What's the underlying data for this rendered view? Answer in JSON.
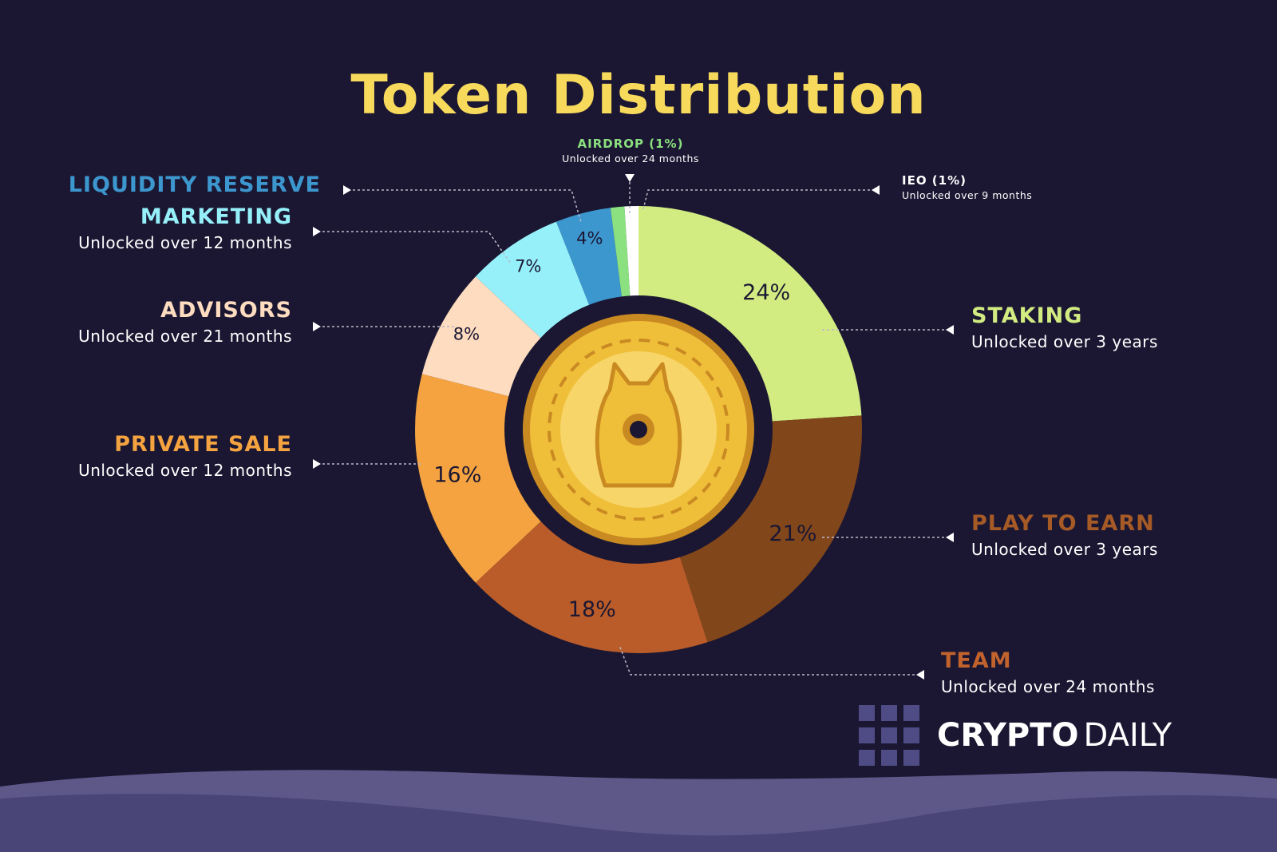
{
  "colors": {
    "background": "#1b1732",
    "title": "#f7d95c",
    "leader": "#b9b7c8",
    "hill_front": "#4a4577",
    "hill_back": "#5d5888",
    "coin_outer": "#c98a22",
    "coin_mid": "#f0bf3a",
    "coin_inner": "#f7d568",
    "hole": "#1b1732",
    "brand_squares": "#4f4c85"
  },
  "chart_data": {
    "type": "pie",
    "title": "Token Distribution",
    "start_angle_deg": 0,
    "slices": [
      {
        "key": "staking",
        "label": "STAKING",
        "value": 24,
        "pct_label": "24%",
        "color": "#d2ec82",
        "text_color": "#1b1732"
      },
      {
        "key": "play_to_earn",
        "label": "PLAY TO EARN",
        "value": 21,
        "pct_label": "21%",
        "color": "#82461b",
        "text_color": "#1b1732"
      },
      {
        "key": "team",
        "label": "TEAM",
        "value": 18,
        "pct_label": "18%",
        "color": "#ba5c29",
        "text_color": "#1b1732"
      },
      {
        "key": "private_sale",
        "label": "PRIVATE SALE",
        "value": 16,
        "pct_label": "16%",
        "color": "#f4a340",
        "text_color": "#1b1732"
      },
      {
        "key": "advisors",
        "label": "ADVISORS",
        "value": 8,
        "pct_label": "8%",
        "color": "#fddcc0",
        "text_color": "#1b1732"
      },
      {
        "key": "marketing",
        "label": "MARKETING",
        "value": 7,
        "pct_label": "7%",
        "color": "#96f0fa",
        "text_color": "#1b1732"
      },
      {
        "key": "liquidity_reserve",
        "label": "LIQUIDITY RESERVE",
        "value": 4,
        "pct_label": "4%",
        "color": "#3d97cf",
        "text_color": "#1b1732"
      },
      {
        "key": "airdrop",
        "label": "AIRDROP (1%)",
        "value": 1,
        "pct_label": "",
        "color": "#8be07f",
        "text_color": "#1b1732"
      },
      {
        "key": "ieo",
        "label": "IEO (1%)",
        "value": 1,
        "pct_label": "",
        "color": "#ffffff",
        "text_color": "#1b1732"
      }
    ]
  },
  "labels": {
    "liquidity_reserve": {
      "name": "LIQUIDITY RESERVE",
      "sub": "",
      "color": "#3d97cf"
    },
    "marketing": {
      "name": "MARKETING",
      "sub": "Unlocked over 12 months",
      "color": "#96f0fa"
    },
    "advisors": {
      "name": "ADVISORS",
      "sub": "Unlocked over 21 months",
      "color": "#fddcc0"
    },
    "private_sale": {
      "name": "PRIVATE SALE",
      "sub": "Unlocked over 12 months",
      "color": "#f4a340"
    },
    "airdrop": {
      "name": "AIRDROP (1%)",
      "sub": "Unlocked over 24 months",
      "color": "#8be07f"
    },
    "ieo": {
      "name": "IEO (1%)",
      "sub": "Unlocked over 9 months",
      "color": "#ffffff"
    },
    "staking": {
      "name": "STAKING",
      "sub": "Unlocked over 3 years",
      "color": "#d2ec82"
    },
    "play_to_earn": {
      "name": "PLAY TO EARN",
      "sub": "Unlocked over 3 years",
      "color": "#a65a26"
    },
    "team": {
      "name": "TEAM",
      "sub": "Unlocked over 24 months",
      "color": "#c2622c"
    }
  },
  "brand": {
    "word1": "CRYPTO",
    "word2": "DAILY"
  },
  "coin_icon": "shiba-coin-icon"
}
